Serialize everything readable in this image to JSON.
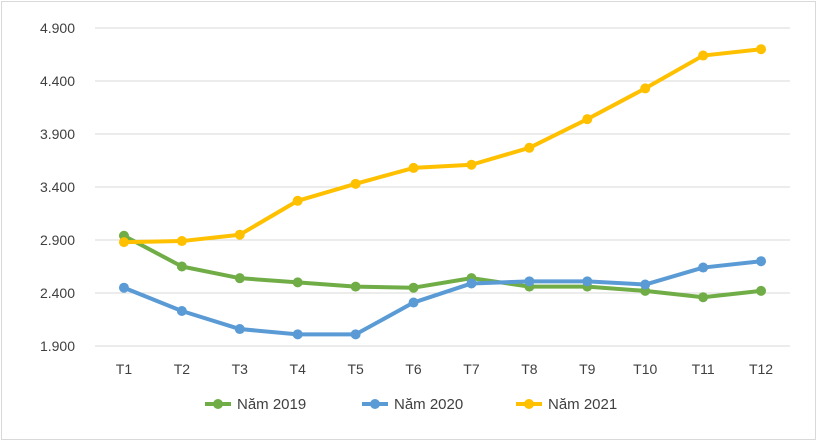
{
  "chart_data": {
    "type": "line",
    "title": "",
    "xlabel": "",
    "ylabel": "",
    "categories": [
      "T1",
      "T2",
      "T3",
      "T4",
      "T5",
      "T6",
      "T7",
      "T8",
      "T9",
      "T10",
      "T11",
      "T12"
    ],
    "ylim": [
      1900,
      4900
    ],
    "yticks": [
      1900,
      2400,
      2900,
      3400,
      3900,
      4400,
      4900
    ],
    "ytick_labels": [
      "1.900",
      "2.400",
      "2.900",
      "3.400",
      "3.900",
      "4.400",
      "4.900"
    ],
    "grid": "horizontal",
    "legend_position": "bottom",
    "series": [
      {
        "name": "Năm 2019",
        "color": "#70ad47",
        "values": [
          2940,
          2650,
          2540,
          2500,
          2460,
          2450,
          2540,
          2460,
          2460,
          2420,
          2360,
          2420
        ]
      },
      {
        "name": "Năm 2020",
        "color": "#5b9bd5",
        "values": [
          2450,
          2230,
          2060,
          2010,
          2010,
          2310,
          2490,
          2510,
          2510,
          2480,
          2640,
          2700
        ]
      },
      {
        "name": "Năm 2021",
        "color": "#ffc000",
        "values": [
          2880,
          2890,
          2950,
          3270,
          3430,
          3580,
          3610,
          3770,
          4040,
          4330,
          4640,
          4700
        ]
      }
    ]
  }
}
